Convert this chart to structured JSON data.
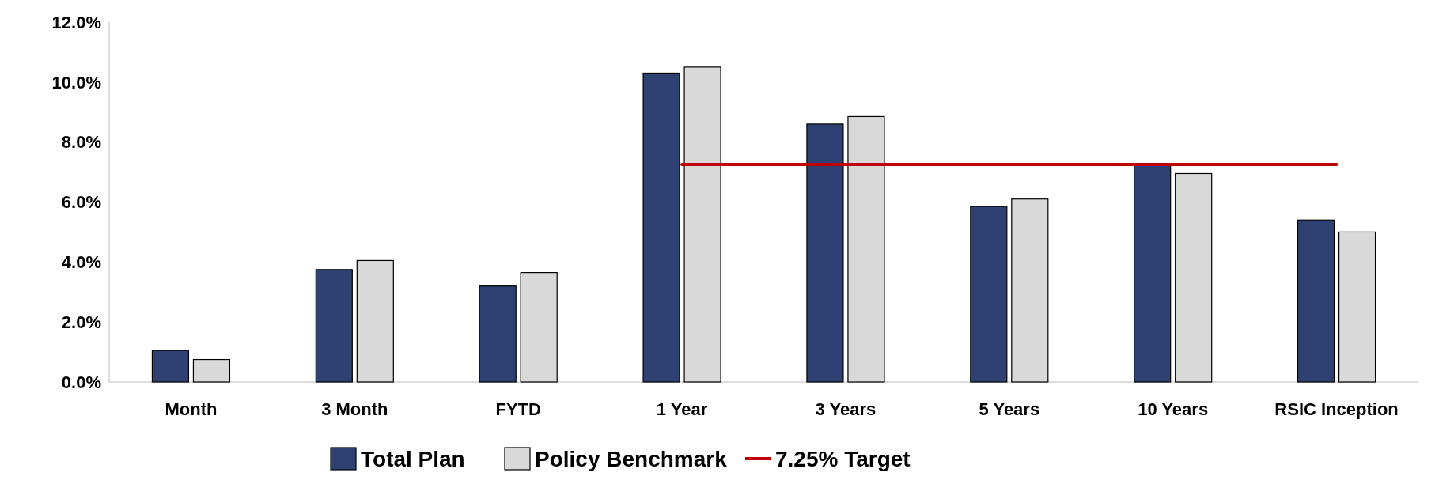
{
  "chart_data": {
    "type": "bar",
    "categories": [
      "Month",
      "3 Month",
      "FYTD",
      "1 Year",
      "3 Years",
      "5 Years",
      "10 Years",
      "RSIC Inception"
    ],
    "series": [
      {
        "name": "Total Plan",
        "color": "#2e4172",
        "values": [
          1.05,
          3.75,
          3.2,
          10.3,
          8.6,
          5.85,
          7.25,
          5.4
        ]
      },
      {
        "name": "Policy Benchmark",
        "color": "#d9d9d9",
        "values": [
          0.75,
          4.05,
          3.65,
          10.5,
          8.85,
          6.1,
          6.95,
          5.0
        ]
      },
      {
        "name": "7.25% Target",
        "type": "line",
        "color": "#c00000",
        "values": [
          null,
          null,
          null,
          7.25,
          7.25,
          7.25,
          7.25,
          7.25
        ]
      }
    ],
    "ylim": [
      0,
      12
    ],
    "yticks": [
      {
        "value": 0,
        "label": "0.0%"
      },
      {
        "value": 2,
        "label": "2.0%"
      },
      {
        "value": 4,
        "label": "4.0%"
      },
      {
        "value": 6,
        "label": "6.0%"
      },
      {
        "value": 8,
        "label": "8.0%"
      },
      {
        "value": 10,
        "label": "10.0%"
      },
      {
        "value": 12,
        "label": "12.0%"
      }
    ],
    "legend": "bottom",
    "grid": false
  }
}
